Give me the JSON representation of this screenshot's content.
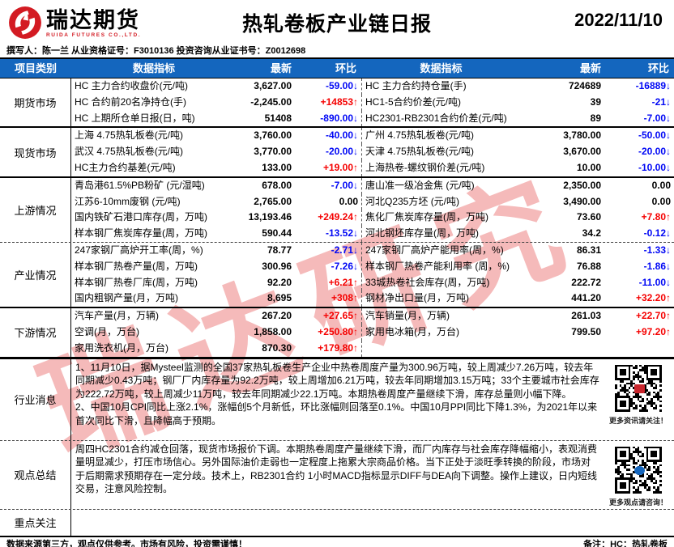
{
  "header": {
    "logo_cn": "瑞达期货",
    "logo_en": "RUIDA FUTURES CO.,LTD.",
    "title": "热轧卷板产业链日报",
    "date": "2022/11/10",
    "author_line": "撰写人：陈一兰  从业资格证号：F3010136  投资咨询从业证书号：Z0012698"
  },
  "watermark": "瑞达研究",
  "colors": {
    "header_blue": "#1466be",
    "down_blue": "#0007f5",
    "up_red": "#f50000",
    "logo_red": "#d31b23"
  },
  "table": {
    "headers": {
      "category": "项目类别",
      "indicator": "数据指标",
      "latest": "最新",
      "mom": "环比"
    },
    "sections": [
      {
        "category": "期货市场",
        "rows": [
          {
            "left": {
              "label": "HC 主力合约收盘价(元/吨)",
              "value": "3,627.00",
              "change": "-59.00↓",
              "trend": "down"
            },
            "right": {
              "label": "HC 主力合约持仓量(手)",
              "value": "724689",
              "change": "-16889↓",
              "trend": "down"
            }
          },
          {
            "left": {
              "label": "HC 合约前20名净持仓(手)",
              "value": "-2,245.00",
              "change": "+14853↑",
              "trend": "up"
            },
            "right": {
              "label": "HC1-5合约价差(元/吨)",
              "value": "39",
              "change": "-21↓",
              "trend": "down"
            }
          },
          {
            "left": {
              "label": "HC 上期所仓单日报(日，吨)",
              "value": "51408",
              "change": "-890.00↓",
              "trend": "down"
            },
            "right": {
              "label": "HC2301-RB2301合约价差(元/吨)",
              "value": "89",
              "change": "-7.00↓",
              "trend": "down"
            }
          }
        ]
      },
      {
        "category": "现货市场",
        "rows": [
          {
            "left": {
              "label": "上海 4.75热轧板卷(元/吨)",
              "value": "3,760.00",
              "change": "-40.00↓",
              "trend": "down"
            },
            "right": {
              "label": "广州 4.75热轧板卷(元/吨)",
              "value": "3,780.00",
              "change": "-50.00↓",
              "trend": "down"
            }
          },
          {
            "left": {
              "label": "武汉 4.75热轧板卷(元/吨)",
              "value": "3,770.00",
              "change": "-20.00↓",
              "trend": "down"
            },
            "right": {
              "label": "天津 4.75热轧板卷(元/吨)",
              "value": "3,670.00",
              "change": "-20.00↓",
              "trend": "down"
            }
          },
          {
            "left": {
              "label": "HC主力合约基差(元/吨)",
              "value": "133.00",
              "change": "+19.00↑",
              "trend": "up"
            },
            "right": {
              "label": "上海热卷-螺纹钢价差(元/吨)",
              "value": "10.00",
              "change": "-10.00↓",
              "trend": "down"
            }
          }
        ]
      },
      {
        "category": "上游情况",
        "rows": [
          {
            "left": {
              "label": "青岛港61.5%PB粉矿 (元/湿吨)",
              "value": "678.00",
              "change": "-7.00↓",
              "trend": "down"
            },
            "right": {
              "label": "唐山准一级冶金焦 (元/吨)",
              "value": "2,350.00",
              "change": "0.00",
              "trend": "flat"
            }
          },
          {
            "left": {
              "label": "江苏6-10mm废钢 (元/吨)",
              "value": "2,765.00",
              "change": "0.00",
              "trend": "flat"
            },
            "right": {
              "label": "河北Q235方坯 (元/吨)",
              "value": "3,490.00",
              "change": "0.00",
              "trend": "flat"
            }
          },
          {
            "left": {
              "label": "国内铁矿石港口库存(周，万吨)",
              "value": "13,193.46",
              "change": "+249.24↑",
              "trend": "up"
            },
            "right": {
              "label": "焦化厂焦炭库存量(周，万吨)",
              "value": "73.60",
              "change": "+7.80↑",
              "trend": "up"
            }
          },
          {
            "left": {
              "label": "样本钢厂焦炭库存量(周，万吨)",
              "value": "590.44",
              "change": "-13.52↓",
              "trend": "down"
            },
            "right": {
              "label": "河北钢坯库存量(周，万吨)",
              "value": "34.2",
              "change": "-0.12↓",
              "trend": "down"
            }
          }
        ]
      },
      {
        "category": "产业情况",
        "rows": [
          {
            "left": {
              "label": "247家钢厂高炉开工率(周，%)",
              "value": "78.77",
              "change": "-2.71↓",
              "trend": "down"
            },
            "right": {
              "label": "247家钢厂高炉产能用率(周，%)",
              "value": "86.31",
              "change": "-1.33↓",
              "trend": "down"
            }
          },
          {
            "left": {
              "label": "样本钢厂热卷产量(周，万吨)",
              "value": "300.96",
              "change": "-7.26↓",
              "trend": "down"
            },
            "right": {
              "label": "样本钢厂热卷产能利用率 (周，%)",
              "value": "76.88",
              "change": "-1.86↓",
              "trend": "down"
            }
          },
          {
            "left": {
              "label": "样本钢厂热卷厂库(周，万吨)",
              "value": "92.20",
              "change": "+6.21↑",
              "trend": "up"
            },
            "right": {
              "label": "33城热卷社会库存(周，万吨)",
              "value": "222.72",
              "change": "-11.00↓",
              "trend": "down"
            }
          },
          {
            "left": {
              "label": "国内粗钢产量(月，万吨)",
              "value": "8,695",
              "change": "+308↑",
              "trend": "up"
            },
            "right": {
              "label": "钢材净出口量(月，万吨)",
              "value": "441.20",
              "change": "+32.20↑",
              "trend": "up"
            }
          }
        ]
      },
      {
        "category": "下游情况",
        "rows": [
          {
            "left": {
              "label": "汽车产量(月，万辆)",
              "value": "267.20",
              "change": "+27.65↑",
              "trend": "up"
            },
            "right": {
              "label": "汽车销量(月，万辆)",
              "value": "261.03",
              "change": "+22.70↑",
              "trend": "up"
            }
          },
          {
            "left": {
              "label": "空调(月，万台)",
              "value": "1,858.00",
              "change": "+250.80↑",
              "trend": "up"
            },
            "right": {
              "label": "家用电冰箱(月，万台)",
              "value": "799.50",
              "change": "+97.20↑",
              "trend": "up"
            }
          },
          {
            "left": {
              "label": "家用洗衣机(月，万台)",
              "value": "870.30",
              "change": "+179.80↑",
              "trend": "up"
            },
            "right": {
              "label": "",
              "value": "",
              "change": "",
              "trend": "flat"
            }
          }
        ]
      }
    ]
  },
  "news": {
    "category": "行业消息",
    "paragraphs": [
      "1、11月10日，据Mysteel监测的全国37家热轧板卷生产企业中热卷周度产量为300.96万吨，较上周减少7.26万吨，较去年同期减少0.43万吨；钢厂厂内库存量为92.2万吨，较上周增加6.21万吨，较去年同期增加3.15万吨；33个主要城市社会库存为222.72万吨，较上周减少11万吨，较去年同期减少22.1万吨。本期热卷周度产量继续下滑，库存总量则小幅下降。",
      "2、中国10月CPI同比上涨2.1%，涨幅创5个月新低，环比涨幅则回落至0.1%。中国10月PPI同比下降1.3%，为2021年以来首次同比下滑，且降幅高于预期。"
    ],
    "qr_caption": "更多资讯请关注！"
  },
  "opinion": {
    "category": "观点总结",
    "paragraph": "周四HC2301合约减仓回落，现货市场报价下调。本期热卷周度产量继续下滑，而厂内库存与社会库存降幅缩小，表观消费量明显减少，打压市场信心。另外国际油价走弱也一定程度上拖累大宗商品价格。当下正处于淡旺季转换的阶段，市场对于后期需求预期存在一定分歧。技术上，RB2301合约 1小时MACD指标显示DIFF与DEA向下调整。操作上建议，日内短线交易，注意风险控制。",
    "qr_caption": "更多观点请咨询！"
  },
  "focus": {
    "category": "重点关注",
    "content": ""
  },
  "footer": {
    "disclaimer": "数据来源第三方，观点仅供参考。市场有风险，投资需谨慎！",
    "note": "备注：HC：热轧卷板"
  }
}
